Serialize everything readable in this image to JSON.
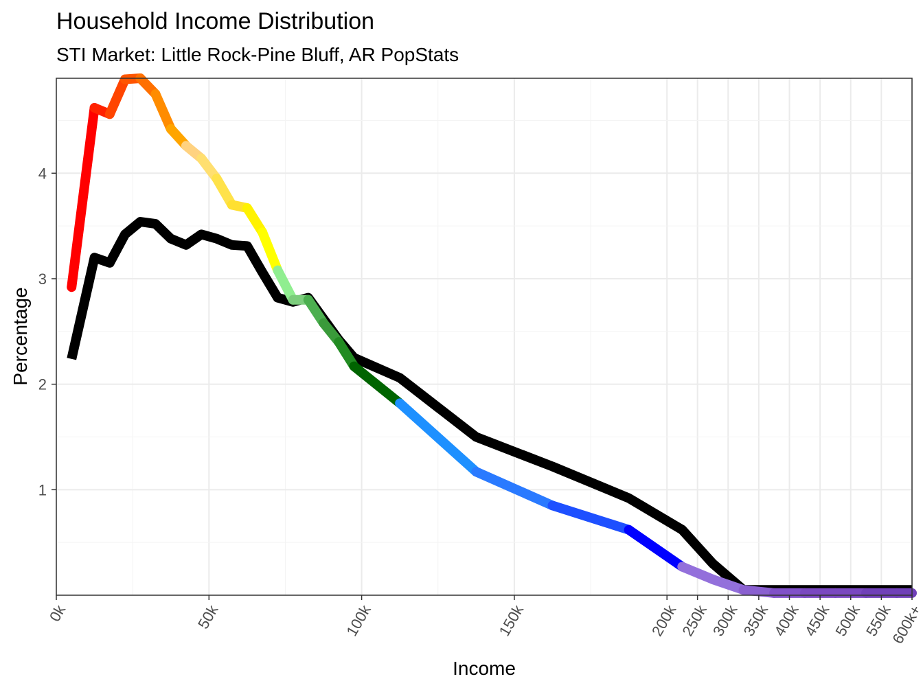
{
  "chart_data": {
    "type": "line",
    "title": "Household Income Distribution",
    "subtitle": "STI Market: Little Rock-Pine Bluff, AR PopStats",
    "xlabel": "Income",
    "ylabel": "Percentage",
    "x_ticks": [
      "0k",
      "50k",
      "100k",
      "150k",
      "200k",
      "250k",
      "300k",
      "350k",
      "400k",
      "450k",
      "500k",
      "550k",
      "600k+"
    ],
    "y_ticks": [
      "1",
      "2",
      "3",
      "4"
    ],
    "ylim": [
      0,
      4.9
    ],
    "grid": true,
    "x_scale_note": "linear to 200k, compressed above",
    "x": [
      "5k",
      "12.5k",
      "17.5k",
      "22.5k",
      "27.5k",
      "32.5k",
      "37.5k",
      "42.5k",
      "47.5k",
      "52.5k",
      "57.5k",
      "62.5k",
      "67.5k",
      "72.5k",
      "77.5k",
      "82.5k",
      "87.5k",
      "92.5k",
      "97.5k",
      "112.5k",
      "137.5k",
      "162.5k",
      "187.5k",
      "225k",
      "275k",
      "325k",
      "375k",
      "425k",
      "475k",
      "525k",
      "575k",
      "600k+"
    ],
    "series": [
      {
        "values": [
          2.92,
          4.62,
          4.56,
          4.89,
          4.9,
          4.75,
          4.42,
          4.26,
          4.14,
          3.95,
          3.7,
          3.67,
          3.44,
          3.08,
          2.8,
          2.8,
          2.58,
          2.4,
          2.17,
          1.82,
          1.17,
          0.85,
          0.62,
          0.27,
          0.15,
          0.05,
          0.02,
          0.02,
          0.02,
          0.02,
          0.02,
          0.02
        ],
        "colors": [
          "#FF0000",
          "#FF2200",
          "#FF4500",
          "#FF5500",
          "#FF7000",
          "#FF8C00",
          "#FFA500",
          "#FFD280",
          "#FFDF70",
          "#FFE24A",
          "#FFE030",
          "#FFF200",
          "#FFFF00",
          "#90EE90",
          "#7CCD7C",
          "#4CAF50",
          "#3A9A3A",
          "#228B22",
          "#006400",
          "#1E90FF",
          "#2A7AFF",
          "#1E50FF",
          "#0000FF",
          "#9370DB",
          "#9370DB",
          "#8A60D0",
          "#8050C8",
          "#7A48C0",
          "#7A48C0",
          "#7040B8",
          "#7040B8",
          "#6A30B0"
        ]
      },
      {
        "color": "#000000",
        "values": [
          2.24,
          3.2,
          3.15,
          3.42,
          3.54,
          3.52,
          3.38,
          3.32,
          3.42,
          3.38,
          3.32,
          3.31,
          3.06,
          2.82,
          2.78,
          2.82,
          2.62,
          2.42,
          2.25,
          2.06,
          1.5,
          1.22,
          0.92,
          0.62,
          0.3,
          0.05,
          0.05,
          0.05,
          0.05,
          0.05,
          0.05,
          0.05
        ]
      }
    ]
  }
}
